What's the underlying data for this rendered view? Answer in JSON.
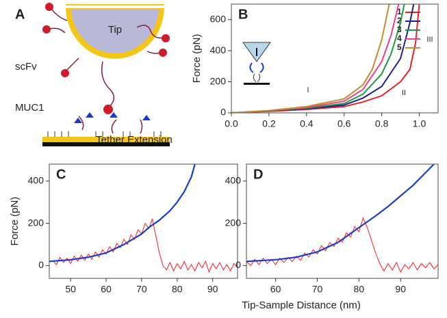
{
  "diagram_a": {
    "label": "A",
    "tip": "Tip",
    "antibody": "scFv",
    "antigen": "MUC1"
  },
  "chart_data": [
    {
      "type": "line",
      "label": "B",
      "xlabel": "Tether Extension",
      "ylabel": "Force (pN)",
      "xlim": [
        0,
        1.1
      ],
      "ylim": [
        0,
        700
      ],
      "xticks": [
        {
          "value": 0,
          "label": "0.0"
        },
        {
          "value": 0.2,
          "label": "0.2"
        },
        {
          "value": 0.4,
          "label": "0.4"
        },
        {
          "value": 0.6,
          "label": "0.6"
        },
        {
          "value": 0.8,
          "label": "0.8"
        },
        {
          "value": 1,
          "label": "1.0"
        }
      ],
      "yticks": [
        0,
        200,
        400,
        600
      ],
      "annotations": [
        "I",
        "II",
        "III"
      ],
      "series": [
        {
          "name": "1",
          "color": "#e8202a",
          "x": [
            0,
            0.2,
            0.4,
            0.6,
            0.7,
            0.8,
            0.9,
            0.95,
            0.98,
            1.0
          ],
          "values": [
            0,
            10,
            22,
            40,
            70,
            110,
            200,
            280,
            450,
            700
          ]
        },
        {
          "name": "2",
          "color": "#1b1f8a",
          "x": [
            0,
            0.2,
            0.4,
            0.6,
            0.7,
            0.8,
            0.9,
            0.95,
            0.97
          ],
          "values": [
            0,
            12,
            26,
            50,
            95,
            170,
            350,
            580,
            700
          ]
        },
        {
          "name": "3",
          "color": "#1a9a3a",
          "x": [
            0,
            0.2,
            0.4,
            0.6,
            0.7,
            0.8,
            0.85,
            0.9,
            0.92
          ],
          "values": [
            0,
            13,
            30,
            60,
            120,
            250,
            380,
            580,
            700
          ]
        },
        {
          "name": "4",
          "color": "#e8408a",
          "x": [
            0,
            0.2,
            0.4,
            0.6,
            0.7,
            0.8,
            0.85,
            0.89
          ],
          "values": [
            0,
            14,
            34,
            75,
            150,
            330,
            500,
            700
          ]
        },
        {
          "name": "5",
          "color": "#c88a2a",
          "x": [
            0,
            0.2,
            0.4,
            0.6,
            0.7,
            0.75,
            0.8,
            0.84
          ],
          "values": [
            0,
            15,
            40,
            90,
            180,
            280,
            470,
            700
          ]
        }
      ]
    },
    {
      "type": "line",
      "label": "C",
      "xlabel": "Tip-Sample Distance (nm)",
      "ylabel": "Force (pN)",
      "xlim": [
        44,
        97
      ],
      "ylim": [
        -60,
        480
      ],
      "xticks": [
        50,
        60,
        70,
        80,
        90
      ],
      "yticks": [
        0,
        200,
        400
      ],
      "series": [
        {
          "color": "#ff1a1a",
          "x": [
            45,
            46,
            47,
            48,
            49,
            50,
            51,
            52,
            53,
            54,
            55,
            56,
            57,
            58,
            59,
            60,
            61,
            62,
            63,
            64,
            65,
            66,
            67,
            68,
            69,
            70,
            71,
            72,
            73,
            74,
            75,
            76,
            77,
            78,
            79,
            80,
            81,
            82,
            83,
            84,
            85,
            86,
            87,
            88,
            89,
            90,
            91,
            92,
            93,
            94,
            95,
            96,
            97
          ],
          "values": [
            25,
            5,
            40,
            15,
            35,
            10,
            45,
            20,
            50,
            25,
            55,
            30,
            65,
            40,
            75,
            55,
            90,
            65,
            105,
            85,
            125,
            100,
            145,
            125,
            170,
            150,
            200,
            175,
            220,
            140,
            60,
            0,
            -20,
            15,
            -25,
            10,
            -15,
            20,
            -20,
            5,
            -25,
            15,
            -10,
            20,
            -30,
            10,
            -15,
            15,
            -20,
            5,
            -25,
            10,
            -10
          ]
        },
        {
          "color": "#1a3ccc",
          "x": [
            44,
            50,
            55,
            60,
            65,
            70,
            72,
            75,
            78,
            80,
            82,
            84,
            85
          ],
          "values": [
            20,
            28,
            40,
            60,
            100,
            150,
            180,
            215,
            260,
            300,
            350,
            420,
            480
          ]
        }
      ]
    },
    {
      "type": "line",
      "label": "D",
      "xlim": [
        53,
        99
      ],
      "ylim": [
        -60,
        480
      ],
      "xticks": [
        60,
        70,
        80,
        90
      ],
      "yticks": [
        0,
        200,
        400
      ],
      "series": [
        {
          "color": "#ff1a1a",
          "x": [
            53,
            54,
            55,
            56,
            57,
            58,
            59,
            60,
            61,
            62,
            63,
            64,
            65,
            66,
            67,
            68,
            69,
            70,
            71,
            72,
            73,
            74,
            75,
            76,
            77,
            78,
            79,
            80,
            81,
            82,
            83,
            84,
            85,
            86,
            87,
            88,
            89,
            90,
            91,
            92,
            93,
            94,
            95,
            96,
            97,
            98,
            99
          ],
          "values": [
            20,
            0,
            30,
            5,
            35,
            10,
            30,
            5,
            35,
            15,
            40,
            20,
            45,
            25,
            60,
            40,
            75,
            55,
            95,
            70,
            110,
            90,
            130,
            110,
            155,
            135,
            185,
            160,
            225,
            180,
            120,
            60,
            10,
            -25,
            10,
            -20,
            15,
            -30,
            5,
            -15,
            15,
            -20,
            10,
            -10,
            15,
            -15,
            5
          ]
        },
        {
          "color": "#1a3ccc",
          "x": [
            53,
            60,
            65,
            70,
            75,
            80,
            84,
            87,
            90,
            93,
            96,
            98
          ],
          "values": [
            20,
            28,
            40,
            65,
            110,
            180,
            235,
            280,
            330,
            380,
            440,
            480
          ]
        }
      ]
    }
  ]
}
